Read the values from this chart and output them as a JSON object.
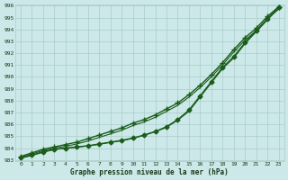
{
  "xlabel": "Graphe pression niveau de la mer (hPa)",
  "bg_color": "#cce8e8",
  "grid_color": "#aacccc",
  "line_color": "#1a5c1a",
  "ylim": [
    983,
    996
  ],
  "xlim": [
    0,
    23
  ],
  "yticks": [
    983,
    984,
    985,
    986,
    987,
    988,
    989,
    990,
    991,
    992,
    993,
    994,
    995,
    996
  ],
  "xticks": [
    0,
    1,
    2,
    3,
    4,
    5,
    6,
    7,
    8,
    9,
    10,
    11,
    12,
    13,
    14,
    15,
    16,
    17,
    18,
    19,
    20,
    21,
    22,
    23
  ],
  "series": [
    {
      "x": [
        0,
        1,
        2,
        3,
        4,
        5,
        6,
        7,
        8,
        9,
        10,
        11,
        12,
        13,
        14,
        15,
        16,
        17,
        18,
        19,
        20,
        21,
        22,
        23
      ],
      "y": [
        983.3,
        983.6,
        983.9,
        984.1,
        984.3,
        984.5,
        984.8,
        985.1,
        985.4,
        985.7,
        986.1,
        986.4,
        986.8,
        987.3,
        987.8,
        988.5,
        989.3,
        990.2,
        991.2,
        992.3,
        993.3,
        994.1,
        995.1,
        995.9
      ],
      "marker": "+",
      "linewidth": 1.0,
      "markersize": 4,
      "zorder": 3
    },
    {
      "x": [
        0,
        1,
        2,
        3,
        4,
        5,
        6,
        7,
        8,
        9,
        10,
        11,
        12,
        13,
        14,
        15,
        16,
        17,
        18,
        19,
        20,
        21,
        22,
        23
      ],
      "y": [
        983.2,
        983.5,
        983.8,
        984.0,
        984.15,
        984.35,
        984.6,
        984.9,
        985.2,
        985.5,
        985.9,
        986.2,
        986.6,
        987.1,
        987.6,
        988.3,
        989.1,
        990.0,
        991.0,
        992.1,
        993.1,
        993.9,
        994.9,
        995.7
      ],
      "marker": null,
      "linewidth": 0.8,
      "markersize": 0,
      "zorder": 2
    },
    {
      "x": [
        0,
        1,
        2,
        3,
        4,
        5,
        6,
        7,
        8,
        9,
        10,
        11,
        12,
        13,
        14,
        15,
        16,
        17,
        18,
        19,
        20,
        21,
        22,
        23
      ],
      "y": [
        983.2,
        983.4,
        983.7,
        983.9,
        984.0,
        984.1,
        984.2,
        984.35,
        984.5,
        984.65,
        984.85,
        985.1,
        985.4,
        985.8,
        986.4,
        987.2,
        988.4,
        989.6,
        990.8,
        991.7,
        992.9,
        993.9,
        994.9,
        995.9
      ],
      "marker": "D",
      "linewidth": 1.0,
      "markersize": 2.5,
      "zorder": 3
    },
    {
      "x": [
        0,
        1,
        2,
        3,
        4,
        5,
        6,
        7,
        8,
        9,
        10,
        11,
        12,
        13,
        14,
        15,
        16,
        17,
        18,
        19,
        20,
        21,
        22,
        23
      ],
      "y": [
        983.15,
        983.38,
        983.65,
        983.88,
        983.98,
        984.08,
        984.18,
        984.32,
        984.48,
        984.62,
        984.82,
        985.08,
        985.38,
        985.75,
        986.35,
        987.1,
        988.3,
        989.5,
        990.7,
        991.6,
        992.8,
        993.8,
        994.8,
        995.8
      ],
      "marker": null,
      "linewidth": 0.8,
      "markersize": 0,
      "zorder": 2
    }
  ]
}
